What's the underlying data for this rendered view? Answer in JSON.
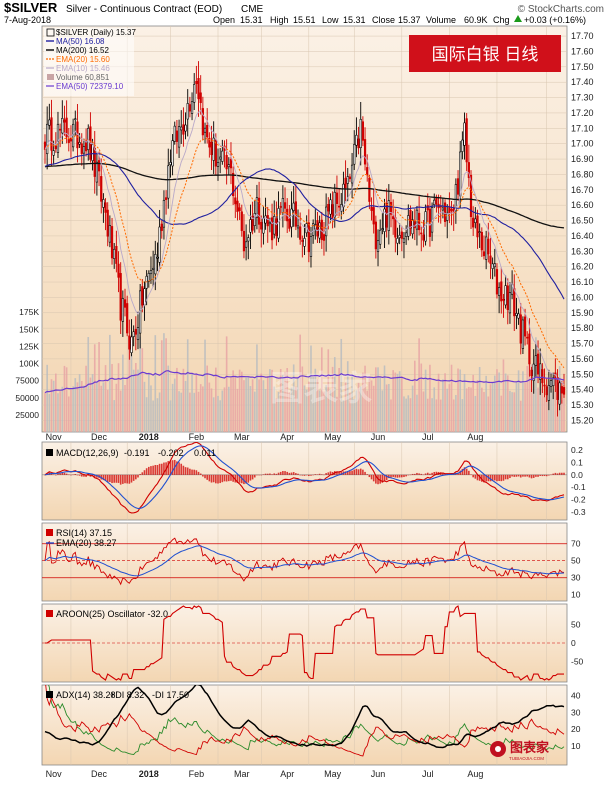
{
  "header": {
    "symbol": "$SILVER",
    "name": "Silver - Continuous Contract (EOD)",
    "exchange": "CME",
    "credit": "© StockCharts.com",
    "date": "7-Aug-2018",
    "open_label": "Open",
    "open": "15.31",
    "high_label": "High",
    "high": "15.51",
    "low_label": "Low",
    "low": "15.31",
    "close_label": "Close",
    "close": "15.37",
    "volume_label": "Volume",
    "volume": "60.9K",
    "chg_label": "Chg",
    "chg": "+0.03 (+0.16%)",
    "chg_icon": "up-triangle-icon",
    "banner": "国际白银 日线",
    "watermark": "图表家",
    "logo_text": "图表家",
    "logo_sub": "TUBIAOJIA.COM"
  },
  "legend": [
    {
      "text": "$SILVER (Daily) 15.37",
      "color": "#000000"
    },
    {
      "text": "MA(50) 16.08",
      "color": "#2020a0"
    },
    {
      "text": "MA(200) 16.52",
      "color": "#000000"
    },
    {
      "text": "EMA(20) 15.60",
      "color": "#ff6a00"
    },
    {
      "text": "EMA(10) 15.46",
      "color": "#b9a9c9"
    },
    {
      "text": "Volume 60,851",
      "color": "#666666"
    },
    {
      "text": "EMA(50) 72379.10",
      "color": "#6a3ad0"
    }
  ],
  "panels": {
    "macd_title": "MACD(12,26,9)",
    "macd_v1": "-0.191",
    "macd_v2": "-0.202",
    "macd_v3": "0.011",
    "rsi_title": "RSI(14) 37.15",
    "rsi_ema": "EMA(20) 38.27",
    "aroon_title": "AROON(25) Oscillator -32.0",
    "adx_title": "ADX(14) 38.28",
    "adx_pdi": "+DI 8.32",
    "adx_mdi": "-DI 17.50"
  },
  "chart_data": {
    "type": "candlestick",
    "months": [
      "Nov",
      "Dec",
      "2018",
      "Feb",
      "Mar",
      "Apr",
      "May",
      "Jun",
      "Jul",
      "Aug"
    ],
    "price_ticks": [
      "17.70",
      "17.60",
      "17.50",
      "17.40",
      "17.30",
      "17.20",
      "17.10",
      "17.00",
      "16.90",
      "16.80",
      "16.70",
      "16.60",
      "16.50",
      "16.40",
      "16.30",
      "16.20",
      "16.10",
      "16.00",
      "15.90",
      "15.80",
      "15.70",
      "15.60",
      "15.50",
      "15.40",
      "15.30",
      "15.20"
    ],
    "price_ylim": [
      15.17,
      17.72
    ],
    "volume_ticks": [
      "175K",
      "150K",
      "125K",
      "100K",
      "75000",
      "50000",
      "25000"
    ],
    "volume_ylim": [
      0,
      200000
    ],
    "macd_ticks": [
      "0.2",
      "0.1",
      "0.0",
      "-0.1",
      "-0.2",
      "-0.3"
    ],
    "macd_ylim": [
      -0.35,
      0.25
    ],
    "rsi_ticks": [
      "70",
      "50",
      "30",
      "10"
    ],
    "rsi_extra_ticks": [
      "90",
      "40",
      "20"
    ],
    "rsi_ylim": [
      5,
      92
    ],
    "aroon_ticks": [
      "50",
      "0",
      "-50"
    ],
    "aroon_ylim": [
      -100,
      100
    ],
    "adx_ticks": [
      "40",
      "30",
      "20",
      "10"
    ],
    "adx_ylim": [
      0,
      45
    ],
    "anchors": [
      {
        "t": 0,
        "c": 17.05
      },
      {
        "t": 10,
        "c": 17.08
      },
      {
        "t": 20,
        "c": 17.02
      },
      {
        "t": 28,
        "c": 16.55
      },
      {
        "t": 35,
        "c": 15.95
      },
      {
        "t": 40,
        "c": 15.7
      },
      {
        "t": 46,
        "c": 16.05
      },
      {
        "t": 52,
        "c": 16.3
      },
      {
        "t": 58,
        "c": 16.95
      },
      {
        "t": 64,
        "c": 17.15
      },
      {
        "t": 70,
        "c": 17.45
      },
      {
        "t": 74,
        "c": 17.05
      },
      {
        "t": 80,
        "c": 16.9
      },
      {
        "t": 86,
        "c": 16.8
      },
      {
        "t": 92,
        "c": 16.35
      },
      {
        "t": 98,
        "c": 16.6
      },
      {
        "t": 104,
        "c": 16.45
      },
      {
        "t": 110,
        "c": 16.55
      },
      {
        "t": 116,
        "c": 16.5
      },
      {
        "t": 122,
        "c": 16.4
      },
      {
        "t": 128,
        "c": 16.45
      },
      {
        "t": 134,
        "c": 16.6
      },
      {
        "t": 140,
        "c": 16.7
      },
      {
        "t": 146,
        "c": 17.1
      },
      {
        "t": 152,
        "c": 16.4
      },
      {
        "t": 158,
        "c": 16.55
      },
      {
        "t": 164,
        "c": 16.45
      },
      {
        "t": 170,
        "c": 16.5
      },
      {
        "t": 176,
        "c": 16.45
      },
      {
        "t": 182,
        "c": 16.6
      },
      {
        "t": 188,
        "c": 16.5
      },
      {
        "t": 194,
        "c": 17.05
      },
      {
        "t": 198,
        "c": 16.45
      },
      {
        "t": 204,
        "c": 16.3
      },
      {
        "t": 210,
        "c": 16.05
      },
      {
        "t": 216,
        "c": 16.0
      },
      {
        "t": 222,
        "c": 15.7
      },
      {
        "t": 228,
        "c": 15.5
      },
      {
        "t": 234,
        "c": 15.45
      },
      {
        "t": 240,
        "c": 15.37
      }
    ]
  }
}
